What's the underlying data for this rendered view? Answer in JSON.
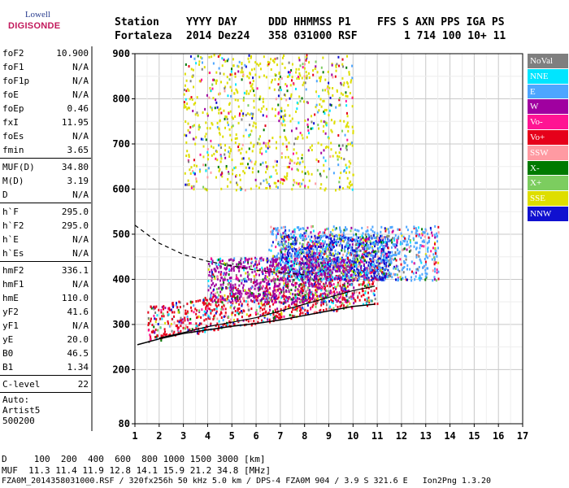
{
  "logo": {
    "line1": "Lowell",
    "line2": "DIGISONDE"
  },
  "header": {
    "labels": [
      "Station",
      "YYYY DAY",
      "DDD HHMMSS P1",
      "FFS S AXN PPS IGA PS"
    ],
    "values": [
      "Fortaleza",
      "2014 Dez24",
      "358 031000 RSF",
      "1 714 100 10+ 11"
    ]
  },
  "params_groups": [
    [
      {
        "name": "foF2",
        "value": "10.900"
      },
      {
        "name": "foF1",
        "value": "N/A"
      },
      {
        "name": "foF1p",
        "value": "N/A"
      },
      {
        "name": "foE",
        "value": "N/A"
      },
      {
        "name": "foEp",
        "value": "0.46"
      },
      {
        "name": "fxI",
        "value": "11.95"
      },
      {
        "name": "foEs",
        "value": "N/A"
      },
      {
        "name": "fmin",
        "value": "3.65"
      }
    ],
    [
      {
        "name": "MUF(D)",
        "value": "34.80"
      },
      {
        "name": "M(D)",
        "value": "3.19"
      },
      {
        "name": "D",
        "value": "N/A"
      }
    ],
    [
      {
        "name": "h`F",
        "value": "295.0"
      },
      {
        "name": "h`F2",
        "value": "295.0"
      },
      {
        "name": "h`E",
        "value": "N/A"
      },
      {
        "name": "h`Es",
        "value": "N/A"
      }
    ],
    [
      {
        "name": "hmF2",
        "value": "336.1"
      },
      {
        "name": "hmF1",
        "value": "N/A"
      },
      {
        "name": "hmE",
        "value": "110.0"
      },
      {
        "name": "yF2",
        "value": "41.6"
      },
      {
        "name": "yF1",
        "value": "N/A"
      },
      {
        "name": "yE",
        "value": "20.0"
      },
      {
        "name": "B0",
        "value": "46.5"
      },
      {
        "name": "B1",
        "value": "1.34"
      }
    ],
    [
      {
        "name": "C-level",
        "value": "22"
      }
    ]
  ],
  "auto": {
    "line1": "Auto:",
    "line2": "Artist5",
    "line3": "500200"
  },
  "legend": [
    {
      "label": "NoVal",
      "color": "#7f7f7f"
    },
    {
      "label": "NNE",
      "color": "#00e5ff"
    },
    {
      "label": "E",
      "color": "#4da6ff"
    },
    {
      "label": "W",
      "color": "#a000a0"
    },
    {
      "label": "Vo-",
      "color": "#ff1493"
    },
    {
      "label": "Vo+",
      "color": "#e6001a"
    },
    {
      "label": "SSW",
      "color": "#ff9aa2"
    },
    {
      "label": "X-",
      "color": "#007a00"
    },
    {
      "label": "X+",
      "color": "#7ccd5f"
    },
    {
      "label": "SSE",
      "color": "#dede00"
    },
    {
      "label": "NNW",
      "color": "#1010d0"
    }
  ],
  "footer": {
    "line1": "D     100  200  400  600  800 1000 1500 3000 [km]",
    "line2": "MUF  11.3 11.4 11.9 12.8 14.1 15.9 21.2 34.8 [MHz]",
    "line3": "FZA0M_2014358031000.RSF / 320fx256h 50 kHz 5.0 km / DPS-4 FZA0M 904 / 3.9 S 321.6 E   Ion2Png 1.3.20"
  },
  "chart_data": {
    "type": "scatter",
    "xlabel": "",
    "ylabel": "",
    "xlim": [
      1,
      17
    ],
    "ylim": [
      80,
      900
    ],
    "x_ticks": [
      1,
      2,
      3,
      4,
      5,
      6,
      7,
      8,
      9,
      10,
      11,
      12,
      13,
      14,
      15,
      16,
      17
    ],
    "y_ticks": [
      80,
      200,
      300,
      400,
      500,
      600,
      700,
      800,
      900
    ],
    "grid": true,
    "legend_position": "right",
    "trace_clusters": [
      {
        "series": "Vo+",
        "x_range": [
          1.5,
          11
        ],
        "h_range": [
          260,
          400
        ]
      },
      {
        "series": "NNW",
        "x_range": [
          7,
          11.5
        ],
        "h_range": [
          400,
          500
        ]
      },
      {
        "series": "E",
        "x_range": [
          6.5,
          13.5
        ],
        "h_range": [
          400,
          520
        ]
      },
      {
        "series": "SSE",
        "x_range": [
          3,
          10
        ],
        "h_range": [
          600,
          900
        ]
      },
      {
        "series": "W",
        "x_range": [
          4,
          10
        ],
        "h_range": [
          350,
          450
        ]
      }
    ],
    "profile_curve": {
      "x": [
        1.1,
        2,
        3,
        4,
        5,
        6,
        7,
        8,
        9,
        10,
        10.9
      ],
      "y": [
        255,
        268,
        280,
        288,
        296,
        302,
        310,
        320,
        330,
        340,
        345
      ]
    },
    "trace_curve": {
      "x": [
        2,
        3,
        4,
        5,
        6,
        7,
        8,
        9,
        10,
        10.9
      ],
      "y": [
        270,
        282,
        295,
        305,
        315,
        330,
        345,
        360,
        375,
        385
      ]
    },
    "dashed_curve": {
      "x": [
        1,
        2,
        3,
        4,
        5,
        6,
        7,
        8
      ],
      "y": [
        520,
        480,
        455,
        440,
        430,
        420,
        415,
        410
      ]
    }
  }
}
